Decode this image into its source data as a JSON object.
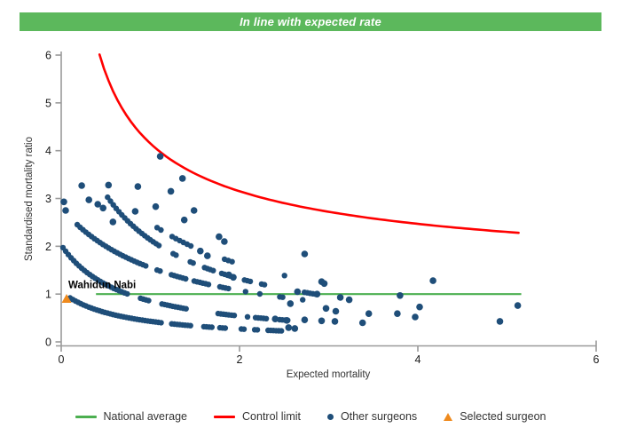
{
  "banner": {
    "text": "In line with expected rate",
    "bg_color": "#5cb85c",
    "text_color": "#ffffff"
  },
  "chart_data": {
    "type": "scatter",
    "title": "",
    "xlabel": "Expected mortality",
    "ylabel": "Standardised mortality ratio",
    "xlim": [
      0,
      6
    ],
    "ylim": [
      0,
      6
    ],
    "x_ticks": [
      0,
      2,
      4,
      6
    ],
    "y_ticks": [
      0,
      1,
      2,
      3,
      4,
      5,
      6
    ],
    "grid": false,
    "legend_position": "bottom",
    "national_average": {
      "y": 1,
      "x_start": 0.39,
      "x_end": 5.16,
      "color": "#4caf50"
    },
    "control_limit": {
      "base": 1,
      "a": 3.15,
      "p": 0.55,
      "x_start": 0.43,
      "x_end": 5.15,
      "color": "#ff0000"
    },
    "other_surgeons": {
      "color": "#1f4e79",
      "arcs": [
        {
          "a": 0.728,
          "b": 0.691,
          "x_start": 0.1,
          "x_end": 2.62,
          "step": 0.03,
          "seed": 7,
          "gap_base": 0.0,
          "gap_slope": 0.28
        },
        {
          "a": 1.475,
          "b": 0.728,
          "x_start": 0.02,
          "x_end": 2.55,
          "step": 0.03,
          "seed": 13,
          "gap_base": 0.0,
          "gap_slope": 0.28
        },
        {
          "a": 3.476,
          "b": 1.238,
          "x_start": 0.18,
          "x_end": 2.8,
          "step": 0.032,
          "seed": 29,
          "gap_base": 0.0,
          "gap_slope": 0.3
        },
        {
          "a": 3.48,
          "b": 0.63,
          "x_start": 0.52,
          "x_end": 2.88,
          "step": 0.032,
          "seed": 41,
          "gap_base": 0.0,
          "gap_slope": 0.32
        },
        {
          "a": 4.72,
          "b": 0.898,
          "x_start": 0.95,
          "x_end": 2.6,
          "step": 0.042,
          "seed": 57,
          "gap_base": 0.45,
          "gap_slope": 0.05
        }
      ],
      "points": [
        [
          0.03,
          2.93
        ],
        [
          0.05,
          2.75
        ],
        [
          0.23,
          3.27
        ],
        [
          0.53,
          3.28
        ],
        [
          0.86,
          3.25
        ],
        [
          1.11,
          3.88
        ],
        [
          1.36,
          3.42
        ],
        [
          1.23,
          3.15
        ],
        [
          0.31,
          2.97
        ],
        [
          0.41,
          2.88
        ],
        [
          0.47,
          2.8
        ],
        [
          1.06,
          2.83
        ],
        [
          0.83,
          2.73
        ],
        [
          0.58,
          2.51
        ],
        [
          1.38,
          2.55
        ],
        [
          1.49,
          2.75
        ],
        [
          1.77,
          2.2
        ],
        [
          1.83,
          2.1
        ],
        [
          1.56,
          1.9
        ],
        [
          1.64,
          1.8
        ],
        [
          1.88,
          1.4
        ],
        [
          1.93,
          1.35
        ],
        [
          2.73,
          1.84
        ],
        [
          2.92,
          1.26
        ],
        [
          2.95,
          1.22
        ],
        [
          2.65,
          1.05
        ],
        [
          2.87,
          1.0
        ],
        [
          3.13,
          0.93
        ],
        [
          3.23,
          0.88
        ],
        [
          2.57,
          0.8
        ],
        [
          2.97,
          0.7
        ],
        [
          3.08,
          0.64
        ],
        [
          2.4,
          0.48
        ],
        [
          2.53,
          0.45
        ],
        [
          2.73,
          0.46
        ],
        [
          2.92,
          0.44
        ],
        [
          3.07,
          0.43
        ],
        [
          3.38,
          0.4
        ],
        [
          3.45,
          0.59
        ],
        [
          3.77,
          0.59
        ],
        [
          3.8,
          0.97
        ],
        [
          4.02,
          0.73
        ],
        [
          4.17,
          1.28
        ],
        [
          3.97,
          0.52
        ],
        [
          4.92,
          0.43
        ],
        [
          5.12,
          0.76
        ],
        [
          2.55,
          0.3
        ],
        [
          2.62,
          0.28
        ]
      ]
    },
    "selected_surgeon": {
      "label": "Wahidun Nabi",
      "x": 0.06,
      "y": 0.9,
      "color": "#ef8a1d"
    }
  },
  "legend": {
    "items": [
      {
        "type": "line",
        "color": "#4caf50",
        "label": "National average"
      },
      {
        "type": "line",
        "color": "#ff0000",
        "label": "Control limit"
      },
      {
        "type": "dot",
        "color": "#1f4e79",
        "label": "Other surgeons"
      },
      {
        "type": "triangle",
        "color": "#ef8a1d",
        "label": "Selected surgeon"
      }
    ]
  }
}
